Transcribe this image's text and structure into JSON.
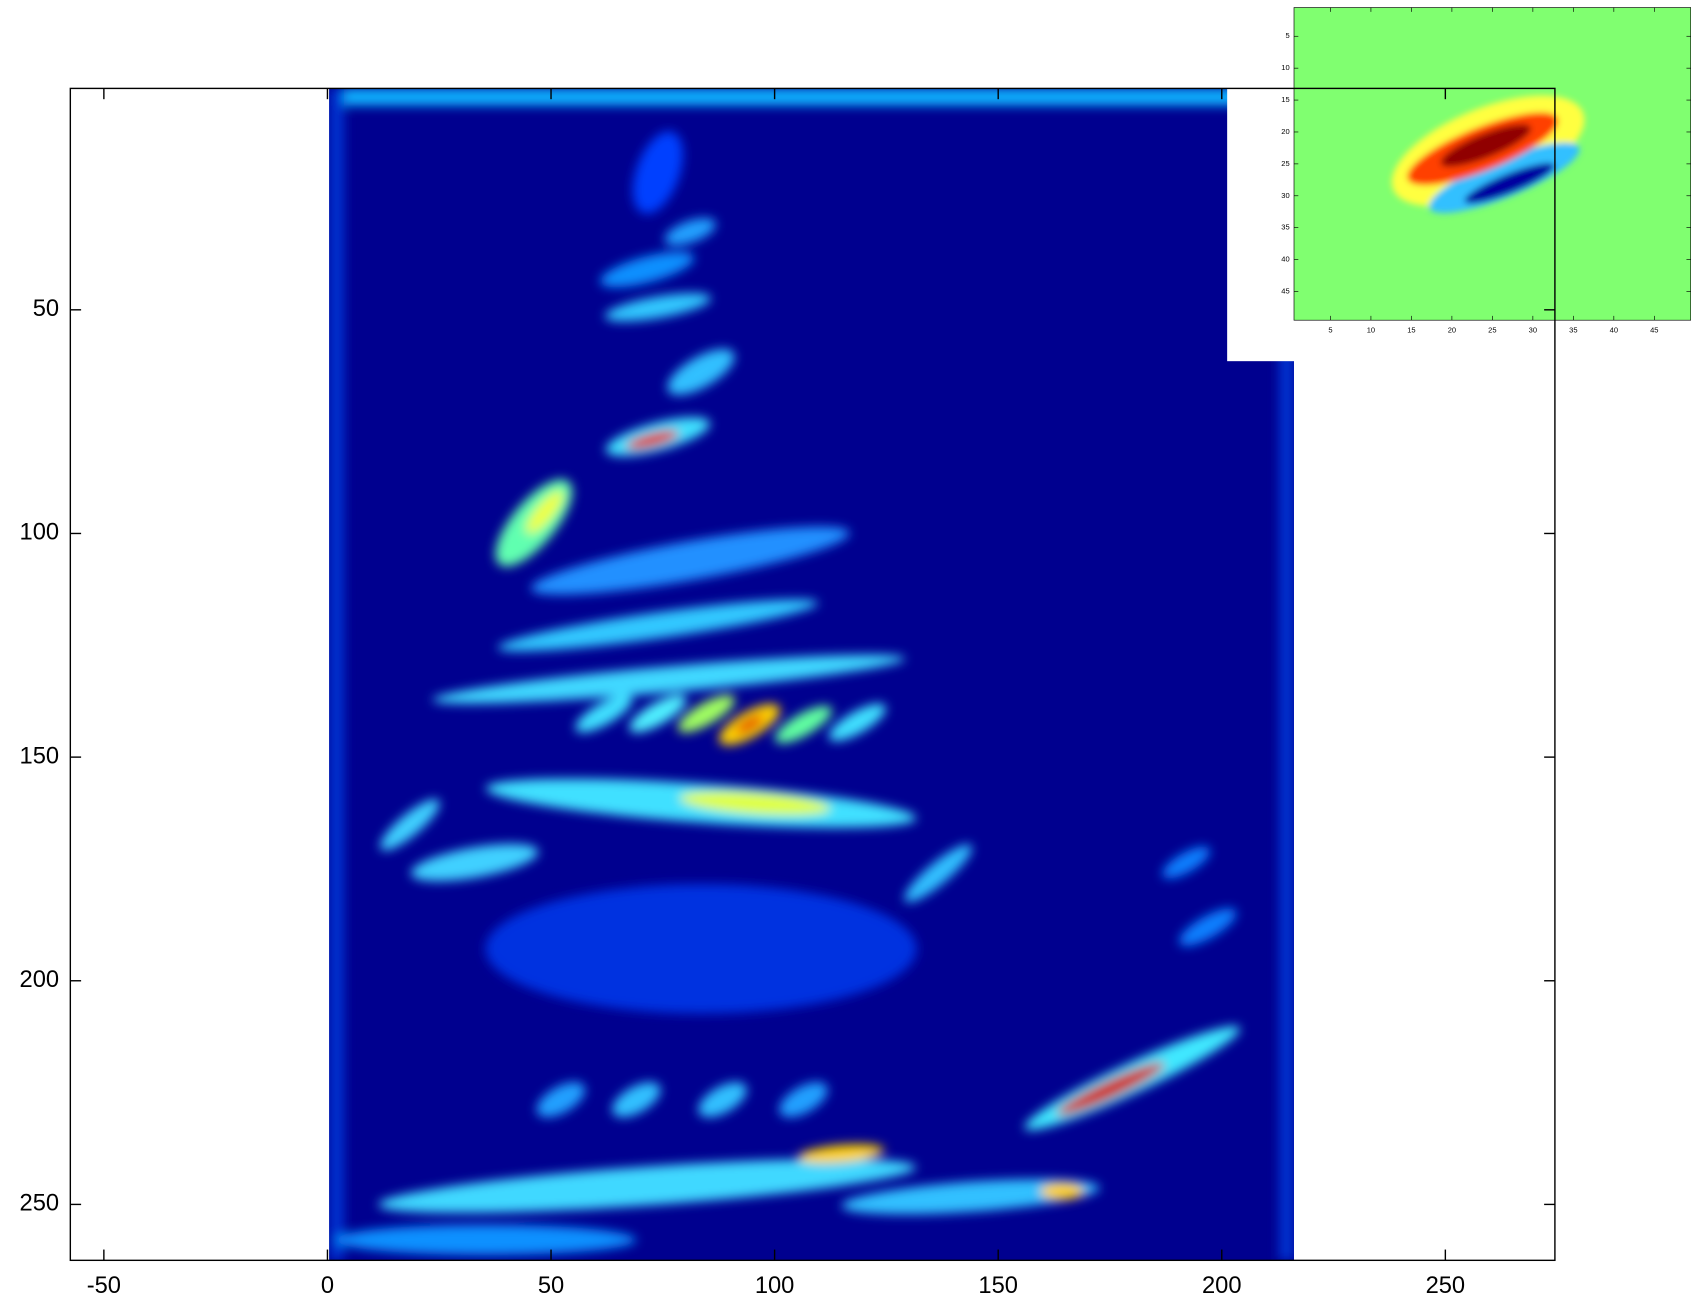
{
  "chart_data": [
    {
      "type": "heatmap",
      "colormap": "jet",
      "y_reversed": true,
      "xlim": [
        -57.5,
        274.5
      ],
      "ylim": [
        0.5,
        262.5
      ],
      "xticks": [
        -50,
        0,
        50,
        100,
        150,
        200,
        250
      ],
      "yticks": [
        50,
        100,
        150,
        200,
        250
      ],
      "image_xlim": [
        0.5,
        216.5
      ]
    },
    {
      "type": "heatmap",
      "colormap": "jet",
      "y_reversed": true,
      "xlim": [
        0.5,
        49.5
      ],
      "ylim": [
        0.5,
        49.5
      ],
      "xticks": [
        5,
        10,
        15,
        20,
        25,
        30,
        35,
        40,
        45
      ],
      "yticks": [
        5,
        10,
        15,
        20,
        25,
        30,
        35,
        40,
        45
      ],
      "image_xlim": [
        0.5,
        49.5
      ]
    }
  ]
}
